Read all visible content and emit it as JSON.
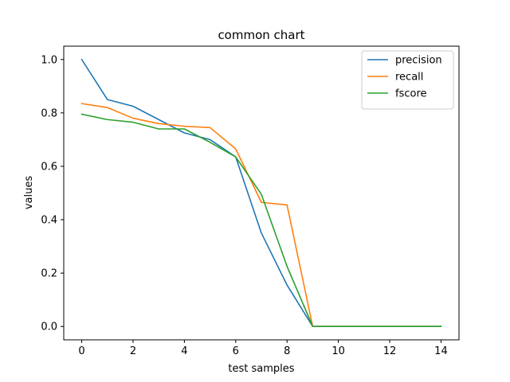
{
  "chart_data": {
    "type": "line",
    "title": "common chart",
    "xlabel": "test samples",
    "ylabel": "values",
    "xlim": [
      -0.7,
      14.7
    ],
    "ylim": [
      -0.05,
      1.05
    ],
    "x_ticks": [
      0,
      2,
      4,
      6,
      8,
      10,
      12,
      14
    ],
    "x_tick_labels": [
      "0",
      "2",
      "4",
      "6",
      "8",
      "10",
      "12",
      "14"
    ],
    "y_ticks": [
      0.0,
      0.2,
      0.4,
      0.6,
      0.8,
      1.0
    ],
    "y_tick_labels": [
      "0.0",
      "0.2",
      "0.4",
      "0.6",
      "0.8",
      "1.0"
    ],
    "grid": false,
    "legend_position": "top-right",
    "x": [
      0,
      1,
      2,
      3,
      4,
      5,
      6,
      7,
      8,
      9,
      10,
      11,
      12,
      13,
      14
    ],
    "series": [
      {
        "name": "precision",
        "color": "#1f77b4",
        "values": [
          1.0,
          0.85,
          0.825,
          0.775,
          0.725,
          0.7,
          0.635,
          0.35,
          0.155,
          0.0,
          0.0,
          0.0,
          0.0,
          0.0,
          0.0
        ]
      },
      {
        "name": "recall",
        "color": "#ff7f0e",
        "values": [
          0.835,
          0.82,
          0.78,
          0.76,
          0.75,
          0.745,
          0.665,
          0.465,
          0.455,
          0.0,
          0.0,
          0.0,
          0.0,
          0.0,
          0.0
        ]
      },
      {
        "name": "fscore",
        "color": "#2ca02c",
        "values": [
          0.795,
          0.775,
          0.765,
          0.74,
          0.74,
          0.69,
          0.635,
          0.495,
          0.225,
          0.0,
          0.0,
          0.0,
          0.0,
          0.0,
          0.0
        ]
      }
    ]
  }
}
